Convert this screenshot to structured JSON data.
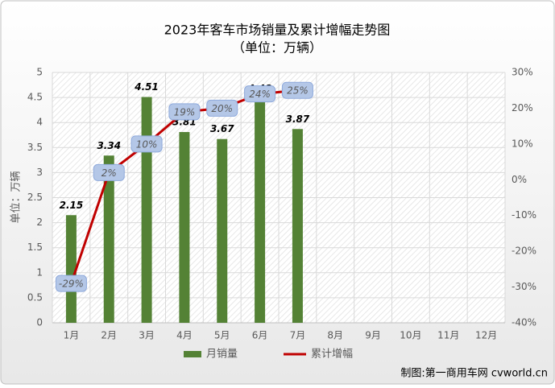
{
  "chart_data": {
    "type": "bar-line",
    "title": "2023年客车市场销量及累计增幅走势图",
    "subtitle": "（单位：万辆）",
    "y_label": "单位：万辆",
    "source": "制图:第一商用车网 cvworld.cn",
    "categories": [
      "1月",
      "2月",
      "3月",
      "4月",
      "5月",
      "6月",
      "7月",
      "8月",
      "9月",
      "10月",
      "11月",
      "12月"
    ],
    "series": [
      {
        "name": "月销量",
        "type": "bar",
        "color": "#548235",
        "values": [
          2.15,
          3.34,
          4.51,
          3.81,
          3.67,
          4.48,
          3.87,
          null,
          null,
          null,
          null,
          null
        ]
      },
      {
        "name": "累计增幅",
        "type": "line",
        "axis": "y2",
        "color": "#c00000",
        "values": [
          -29,
          2,
          10,
          19,
          20,
          24,
          25,
          null,
          null,
          null,
          null,
          null
        ],
        "value_labels": [
          "-29%",
          "2%",
          "10%",
          "19%",
          "20%",
          "24%",
          "25%",
          null,
          null,
          null,
          null,
          null
        ]
      }
    ],
    "ylim": [
      0,
      5
    ],
    "yticks": [
      0,
      0.5,
      1,
      1.5,
      2,
      2.5,
      3,
      3.5,
      4,
      4.5,
      5
    ],
    "y2lim": [
      -40,
      30
    ],
    "y2ticks": [
      {
        "value": -40,
        "label": "-40%"
      },
      {
        "value": -30,
        "label": "-30%"
      },
      {
        "value": -20,
        "label": "-20%"
      },
      {
        "value": -10,
        "label": "-10%"
      },
      {
        "value": 0,
        "label": "0%"
      },
      {
        "value": 10,
        "label": "10%"
      },
      {
        "value": 20,
        "label": "20%"
      },
      {
        "value": 30,
        "label": "30%"
      }
    ],
    "grid": true,
    "legend": "bottom"
  }
}
